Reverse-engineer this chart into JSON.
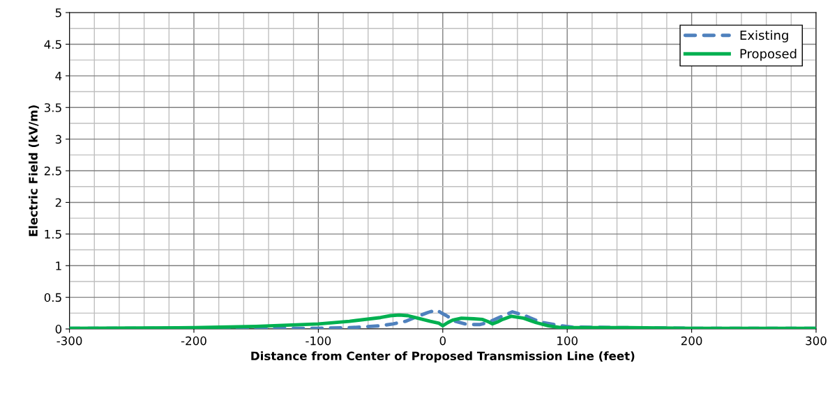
{
  "chart_data": {
    "type": "line",
    "xlabel": "Distance from Center of Proposed Transmission Line (feet)",
    "ylabel": "Electric Field (kV/m)",
    "xlim": [
      -300,
      300
    ],
    "xticks": [
      -300,
      -200,
      -100,
      0,
      100,
      200,
      300
    ],
    "ylim": [
      0,
      5
    ],
    "yticks": [
      0,
      0.5,
      1,
      1.5,
      2,
      2.5,
      3,
      3.5,
      4,
      4.5,
      5
    ],
    "grid": true,
    "legend": "top right",
    "series": [
      {
        "name": "Existing",
        "color": "#4f81bd",
        "line_style": "dashed",
        "x": [
          -300,
          -200,
          -150,
          -100,
          -75,
          -50,
          -40,
          -30,
          -20,
          -12,
          -5,
          0,
          3,
          10,
          18,
          24,
          30,
          36,
          43,
          50,
          56,
          65,
          72,
          78,
          87,
          95,
          104,
          150,
          200,
          300
        ],
        "values": [
          0.01,
          0.01,
          0.01,
          0.01,
          0.02,
          0.05,
          0.08,
          0.12,
          0.2,
          0.26,
          0.3,
          0.24,
          0.21,
          0.12,
          0.08,
          0.07,
          0.07,
          0.1,
          0.16,
          0.22,
          0.27,
          0.22,
          0.16,
          0.11,
          0.08,
          0.05,
          0.03,
          0.02,
          0.01,
          0.01
        ]
      },
      {
        "name": "Proposed",
        "color": "#00b050",
        "line_style": "solid",
        "x": [
          -300,
          -200,
          -150,
          -100,
          -75,
          -50,
          -42,
          -35,
          -28,
          -20,
          -10,
          -3,
          0,
          4,
          8,
          15,
          25,
          32,
          37,
          40,
          44,
          48,
          55,
          65,
          75,
          85,
          95,
          100,
          150,
          200,
          300
        ],
        "values": [
          0.01,
          0.02,
          0.04,
          0.08,
          0.12,
          0.18,
          0.21,
          0.22,
          0.21,
          0.17,
          0.12,
          0.09,
          0.05,
          0.1,
          0.14,
          0.17,
          0.16,
          0.15,
          0.11,
          0.08,
          0.11,
          0.15,
          0.2,
          0.17,
          0.1,
          0.05,
          0.02,
          0.02,
          0.02,
          0.01,
          0.01
        ]
      }
    ]
  }
}
